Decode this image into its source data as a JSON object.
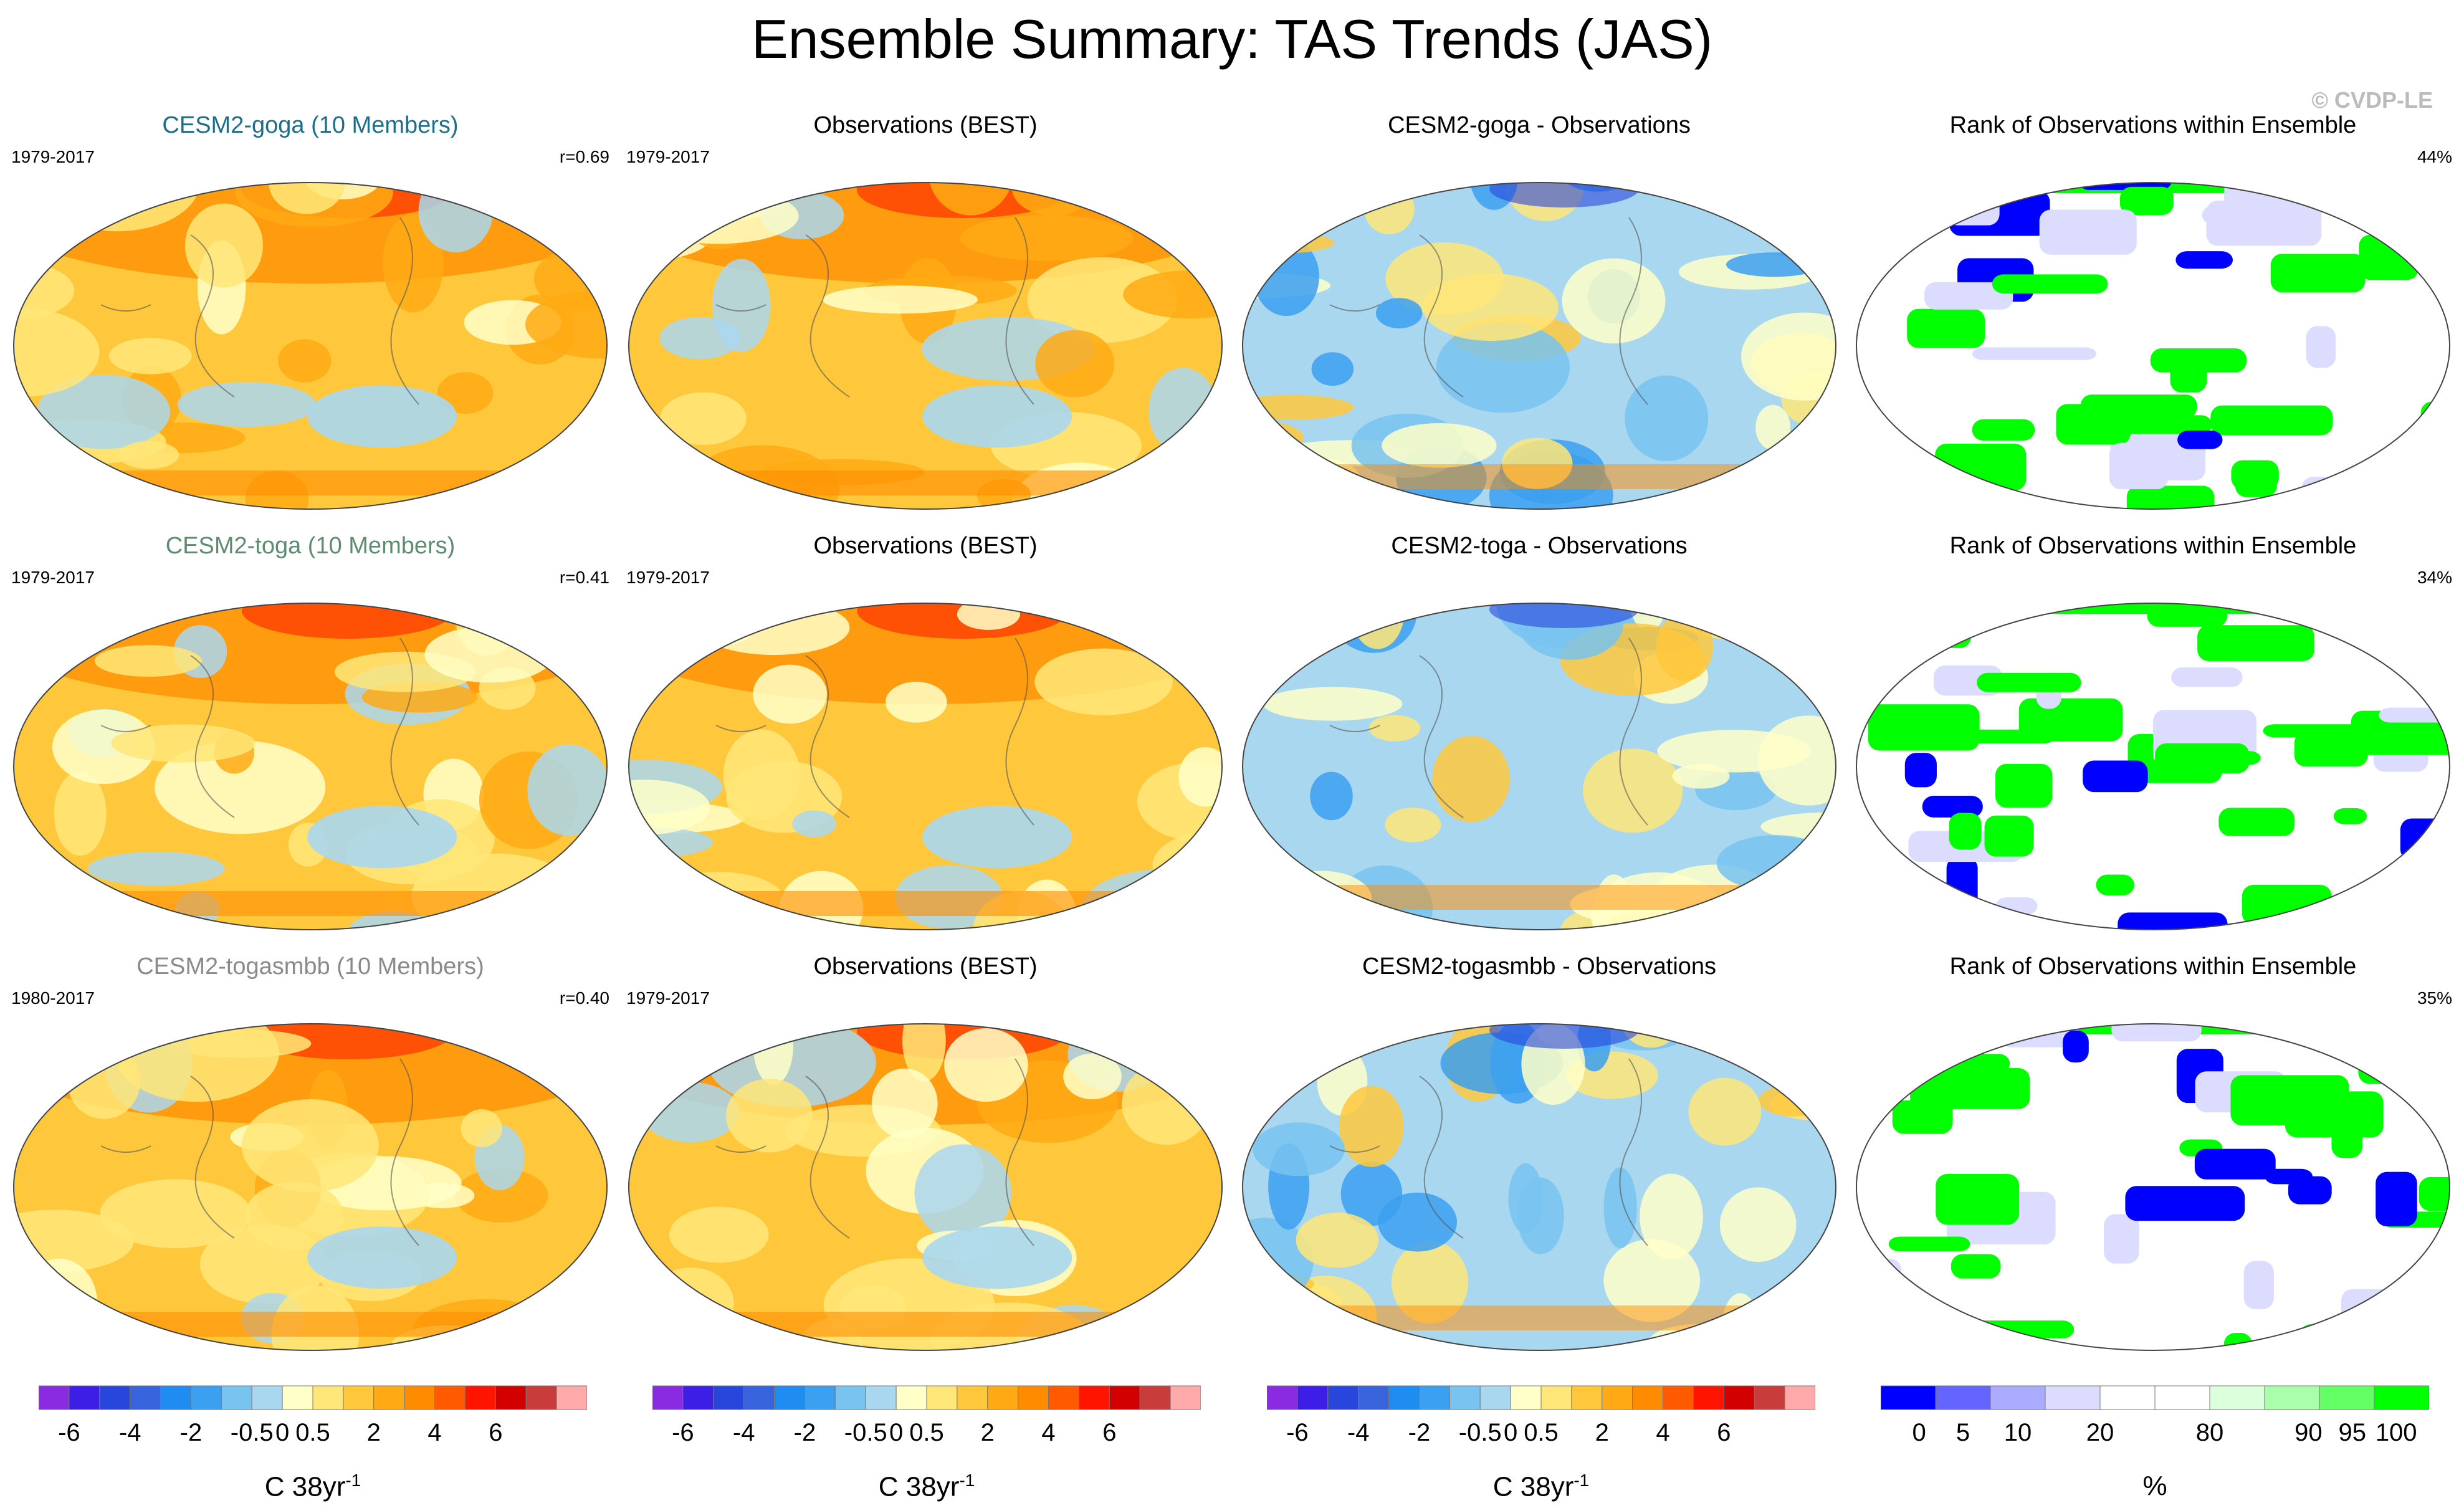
{
  "title": "Ensemble Summary: TAS Trends (JAS)",
  "copyright": "© CVDP-LE",
  "panels": [
    {
      "title": "CESM2-goga (10 Members)",
      "title_color": "#1f6d8c",
      "left": "1979-2017",
      "right": "r=0.69",
      "kind": "trend",
      "tone": 0.72
    },
    {
      "title": "Observations (BEST)",
      "title_color": "#000000",
      "left": "1979-2017",
      "right": "",
      "kind": "trend",
      "tone": 0.7
    },
    {
      "title": "CESM2-goga - Observations",
      "title_color": "#000000",
      "left": "",
      "right": "",
      "kind": "diff",
      "tone": 0.45
    },
    {
      "title": "Rank of Observations within Ensemble",
      "title_color": "#000000",
      "left": "",
      "right": "44%",
      "kind": "rank",
      "tone": 0.44
    },
    {
      "title": "CESM2-toga (10 Members)",
      "title_color": "#5e8c70",
      "left": "1979-2017",
      "right": "r=0.41",
      "kind": "trend",
      "tone": 0.62
    },
    {
      "title": "Observations (BEST)",
      "title_color": "#000000",
      "left": "1979-2017",
      "right": "",
      "kind": "trend",
      "tone": 0.7
    },
    {
      "title": "CESM2-toga - Observations",
      "title_color": "#000000",
      "left": "",
      "right": "",
      "kind": "diff",
      "tone": 0.35
    },
    {
      "title": "Rank of Observations within Ensemble",
      "title_color": "#000000",
      "left": "",
      "right": "34%",
      "kind": "rank",
      "tone": 0.34
    },
    {
      "title": "CESM2-togasmbb (10 Members)",
      "title_color": "#8a8a8a",
      "left": "1980-2017",
      "right": "r=0.40",
      "kind": "trend",
      "tone": 0.64
    },
    {
      "title": "Observations (BEST)",
      "title_color": "#000000",
      "left": "1979-2017",
      "right": "",
      "kind": "trend",
      "tone": 0.7
    },
    {
      "title": "CESM2-togasmbb - Observations",
      "title_color": "#000000",
      "left": "",
      "right": "",
      "kind": "diff",
      "tone": 0.36
    },
    {
      "title": "Rank of Observations within Ensemble",
      "title_color": "#000000",
      "left": "",
      "right": "35%",
      "kind": "rank",
      "tone": 0.35
    }
  ],
  "trend_colorbar": {
    "colors": [
      "#8a2be2",
      "#3c1ee6",
      "#2846dc",
      "#3764dc",
      "#1e8cf0",
      "#3ca0f0",
      "#78c3f0",
      "#aad7f0",
      "#ffffc8",
      "#ffe678",
      "#ffc83c",
      "#ffaa14",
      "#ff8c00",
      "#ff5a00",
      "#ff1400",
      "#d20000",
      "#c83c3c",
      "#ffaaaa"
    ],
    "tick_labels": [
      "-6",
      "-4",
      "-2",
      "-0.5",
      "0",
      "0.5",
      "2",
      "4",
      "6"
    ],
    "tick_positions": [
      1,
      3,
      5,
      7,
      8,
      9,
      11,
      13,
      15
    ],
    "unit_main": "C 38yr",
    "unit_sup": "-1"
  },
  "rank_colorbar": {
    "colors": [
      "#0000ff",
      "#6464ff",
      "#aaaaff",
      "#dcdcff",
      "#ffffff",
      "#ffffff",
      "#dcffdc",
      "#aaffaa",
      "#64ff64",
      "#00ff00"
    ],
    "tick_labels": [
      "0",
      "5",
      "10",
      "20",
      "80",
      "90",
      "95",
      "100"
    ],
    "tick_positions": [
      0.7,
      1.5,
      2.5,
      4,
      6,
      7.8,
      8.6,
      9.4
    ],
    "unit": "%"
  },
  "chart_data": [
    {
      "type": "heatmap",
      "title": "CESM2-goga (10 Members)",
      "period": "1979-2017",
      "pattern_correlation": 0.69,
      "units": "C 38yr-1",
      "levels": [
        -6,
        -4,
        -2,
        -0.5,
        0,
        0.5,
        2,
        4,
        6
      ]
    },
    {
      "type": "heatmap",
      "title": "Observations (BEST)",
      "period": "1979-2017",
      "units": "C 38yr-1"
    },
    {
      "type": "heatmap",
      "title": "CESM2-goga - Observations",
      "units": "C 38yr-1"
    },
    {
      "type": "heatmap",
      "title": "Rank of Observations within Ensemble",
      "percent": 44,
      "units": "%"
    },
    {
      "type": "heatmap",
      "title": "CESM2-toga (10 Members)",
      "period": "1979-2017",
      "pattern_correlation": 0.41,
      "units": "C 38yr-1"
    },
    {
      "type": "heatmap",
      "title": "Observations (BEST)",
      "period": "1979-2017",
      "units": "C 38yr-1"
    },
    {
      "type": "heatmap",
      "title": "CESM2-toga - Observations",
      "units": "C 38yr-1"
    },
    {
      "type": "heatmap",
      "title": "Rank of Observations within Ensemble",
      "percent": 34,
      "units": "%"
    },
    {
      "type": "heatmap",
      "title": "CESM2-togasmbb (10 Members)",
      "period": "1980-2017",
      "pattern_correlation": 0.4,
      "units": "C 38yr-1"
    },
    {
      "type": "heatmap",
      "title": "Observations (BEST)",
      "period": "1979-2017",
      "units": "C 38yr-1"
    },
    {
      "type": "heatmap",
      "title": "CESM2-togasmbb - Observations",
      "units": "C 38yr-1"
    },
    {
      "type": "heatmap",
      "title": "Rank of Observations within Ensemble",
      "percent": 35,
      "units": "%"
    }
  ]
}
